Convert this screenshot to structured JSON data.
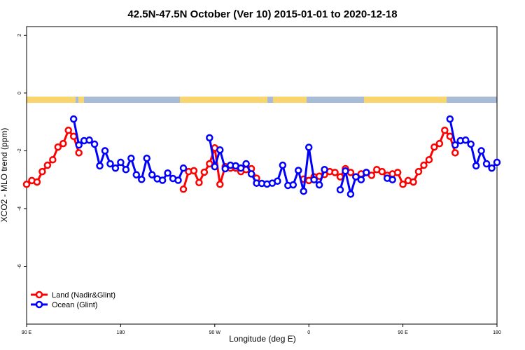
{
  "chart_data": {
    "type": "line",
    "title": "42.5N-47.5N October (Ver 10)   2015-01-01 to 2020-12-18",
    "x_label": "Longitude (deg E)",
    "y_label": "XCO2 - MLO trend (ppm)",
    "x": [
      90,
      95,
      100,
      105,
      110,
      115,
      120,
      125,
      130,
      135,
      140,
      145,
      150,
      155,
      160,
      165,
      170,
      175,
      180,
      185,
      190,
      195,
      200,
      205,
      210,
      215,
      220,
      225,
      230,
      235,
      240,
      245,
      250,
      255,
      260,
      265,
      270,
      275,
      280,
      285,
      290,
      295,
      300,
      305,
      310,
      315,
      320,
      325,
      330,
      335,
      340,
      345,
      350,
      355,
      360,
      365,
      370,
      375,
      380,
      385,
      390,
      395,
      400,
      405,
      410,
      415,
      420,
      425,
      430,
      435,
      440,
      445,
      450,
      455,
      460,
      465,
      470,
      475,
      480,
      485,
      490,
      495,
      500,
      505,
      510,
      515,
      520,
      525,
      530,
      535,
      540
    ],
    "series": [
      {
        "name": "Land (Nadir&Glint)",
        "color": "#ff0000",
        "values": [
          -3.16,
          -3.03,
          -3.08,
          -2.72,
          -2.5,
          -2.31,
          -1.87,
          -1.75,
          -1.29,
          -1.5,
          -2.07,
          null,
          null,
          null,
          null,
          null,
          null,
          null,
          null,
          null,
          null,
          null,
          null,
          null,
          null,
          null,
          null,
          null,
          null,
          null,
          -3.33,
          -2.72,
          -2.69,
          -3.1,
          -2.74,
          -2.45,
          -1.9,
          -3.16,
          -2.55,
          -2.6,
          -2.6,
          -2.72,
          -2.65,
          -2.62,
          -2.95,
          null,
          null,
          null,
          null,
          null,
          null,
          null,
          null,
          -2.98,
          -3.03,
          -2.9,
          -2.88,
          -2.82,
          -2.72,
          -2.75,
          -2.9,
          -2.62,
          -2.75,
          -2.9,
          -2.8,
          -2.75,
          -2.85,
          -2.65,
          -2.72,
          -2.85,
          -2.8,
          -2.75,
          -3.16,
          -3.03,
          -3.08,
          -2.72,
          -2.5,
          -2.31,
          -1.87,
          -1.75,
          -1.29,
          -1.5,
          -2.07,
          null,
          null,
          null,
          null,
          null,
          null,
          null,
          null
        ]
      },
      {
        "name": "Ocean (Glint)",
        "color": "#0000ff",
        "values": [
          null,
          null,
          null,
          null,
          null,
          null,
          null,
          null,
          null,
          -0.9,
          -1.8,
          -1.65,
          -1.63,
          -1.77,
          -2.52,
          -2.0,
          -2.45,
          -2.6,
          -2.4,
          -2.65,
          -2.26,
          -2.83,
          -2.99,
          -2.26,
          -2.83,
          -2.97,
          -3.02,
          -2.77,
          -2.96,
          -3.02,
          -2.6,
          null,
          null,
          null,
          null,
          -1.55,
          -2.55,
          -1.97,
          -2.62,
          -2.5,
          -2.52,
          -2.6,
          -2.45,
          -2.8,
          -3.12,
          -3.13,
          -3.15,
          -3.12,
          -3.05,
          -2.5,
          -3.2,
          -3.18,
          -2.68,
          -3.4,
          -1.88,
          -3.0,
          -3.18,
          -2.65,
          null,
          null,
          -3.35,
          -2.7,
          -3.5,
          -2.9,
          -3.0,
          -2.75,
          null,
          null,
          null,
          -2.95,
          -3.0,
          null,
          null,
          null,
          null,
          null,
          null,
          null,
          null,
          null,
          null,
          -0.9,
          -1.8,
          -1.65,
          -1.63,
          -1.77,
          -2.52,
          -2.0,
          -2.45,
          -2.6,
          -2.4
        ]
      }
    ],
    "xlim": [
      90,
      540
    ],
    "xticks": [
      {
        "value": 90,
        "label": "90 E"
      },
      {
        "value": 180,
        "label": "180"
      },
      {
        "value": 270,
        "label": "90 W"
      },
      {
        "value": 360,
        "label": "0"
      },
      {
        "value": 450,
        "label": "90 E"
      },
      {
        "value": 540,
        "label": "180"
      }
    ],
    "ylim": [
      -8,
      2.3
    ],
    "yticks": [
      -6,
      -4,
      -2,
      0,
      2
    ],
    "legend": "bottom-left"
  }
}
